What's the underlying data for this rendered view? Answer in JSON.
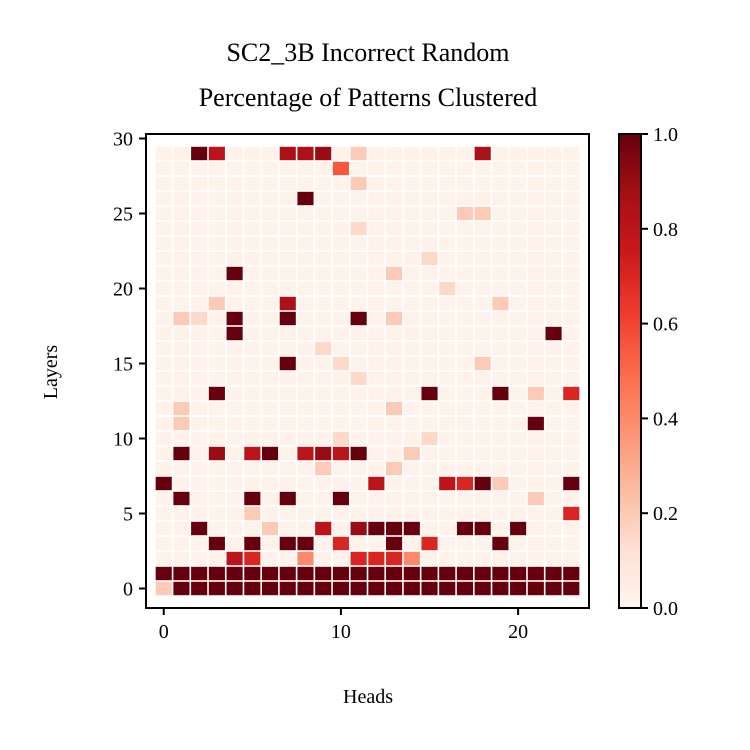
{
  "chart_data": {
    "type": "heatmap",
    "title_lines": [
      "SC2_3B Incorrect Random",
      "Percentage of Patterns Clustered"
    ],
    "xlabel": "Heads",
    "ylabel": "Layers",
    "n_cols": 24,
    "n_rows": 30,
    "xlim": [
      -1,
      24
    ],
    "ylim": [
      -1.3,
      30.3
    ],
    "x_ticks": [
      0,
      10,
      20
    ],
    "x_tick_labels": [
      "0",
      "10",
      "20"
    ],
    "y_ticks": [
      0,
      5,
      10,
      15,
      20,
      25,
      30
    ],
    "y_tick_labels": [
      "0",
      "5",
      "10",
      "15",
      "20",
      "25",
      "30"
    ],
    "colormap": "Reds",
    "colormap_stops": [
      "#fff5f0",
      "#fee0d2",
      "#fcbba1",
      "#fc9272",
      "#fb6a4a",
      "#ef3b2c",
      "#cb181d",
      "#a50f15",
      "#67000d"
    ],
    "colorbar_range": [
      0,
      1
    ],
    "colorbar_ticks": [
      0.0,
      0.2,
      0.4,
      0.6,
      0.8,
      1.0
    ],
    "colorbar_tick_labels": [
      "0.0",
      "0.2",
      "0.4",
      "0.6",
      "0.8",
      "1.0"
    ],
    "background_value": 0.02,
    "cells": [
      [
        0,
        0,
        0.2
      ],
      [
        1,
        0,
        1
      ],
      [
        2,
        0,
        1
      ],
      [
        3,
        0,
        1
      ],
      [
        4,
        0,
        1
      ],
      [
        5,
        0,
        1
      ],
      [
        6,
        0,
        1
      ],
      [
        7,
        0,
        1
      ],
      [
        8,
        0,
        1
      ],
      [
        9,
        0,
        1
      ],
      [
        10,
        0,
        1
      ],
      [
        11,
        0,
        1
      ],
      [
        12,
        0,
        1
      ],
      [
        13,
        0,
        1
      ],
      [
        14,
        0,
        1
      ],
      [
        15,
        0,
        1
      ],
      [
        16,
        0,
        1
      ],
      [
        17,
        0,
        1
      ],
      [
        18,
        0,
        1
      ],
      [
        19,
        0,
        1
      ],
      [
        20,
        0,
        1
      ],
      [
        21,
        0,
        1
      ],
      [
        22,
        0,
        1
      ],
      [
        23,
        0,
        1
      ],
      [
        0,
        1,
        1
      ],
      [
        1,
        1,
        1
      ],
      [
        2,
        1,
        1
      ],
      [
        3,
        1,
        1
      ],
      [
        4,
        1,
        1
      ],
      [
        5,
        1,
        1
      ],
      [
        6,
        1,
        1
      ],
      [
        7,
        1,
        1
      ],
      [
        8,
        1,
        1
      ],
      [
        9,
        1,
        1
      ],
      [
        10,
        1,
        1
      ],
      [
        11,
        1,
        1
      ],
      [
        12,
        1,
        1
      ],
      [
        13,
        1,
        1
      ],
      [
        14,
        1,
        1
      ],
      [
        15,
        1,
        1
      ],
      [
        16,
        1,
        1
      ],
      [
        17,
        1,
        1
      ],
      [
        18,
        1,
        1
      ],
      [
        19,
        1,
        1
      ],
      [
        20,
        1,
        1
      ],
      [
        21,
        1,
        1
      ],
      [
        22,
        1,
        1
      ],
      [
        23,
        1,
        1
      ],
      [
        4,
        2,
        0.8
      ],
      [
        5,
        2,
        0.7
      ],
      [
        8,
        2,
        0.4
      ],
      [
        11,
        2,
        0.7
      ],
      [
        12,
        2,
        0.7
      ],
      [
        13,
        2,
        0.7
      ],
      [
        14,
        2,
        0.4
      ],
      [
        3,
        3,
        1
      ],
      [
        5,
        3,
        1
      ],
      [
        7,
        3,
        1
      ],
      [
        8,
        3,
        1
      ],
      [
        10,
        3,
        0.7
      ],
      [
        13,
        3,
        1
      ],
      [
        15,
        3,
        0.7
      ],
      [
        19,
        3,
        1
      ],
      [
        2,
        4,
        1
      ],
      [
        6,
        4,
        0.2
      ],
      [
        9,
        4,
        0.8
      ],
      [
        11,
        4,
        0.9
      ],
      [
        12,
        4,
        1
      ],
      [
        13,
        4,
        1
      ],
      [
        14,
        4,
        1
      ],
      [
        17,
        4,
        1
      ],
      [
        18,
        4,
        1
      ],
      [
        20,
        4,
        1
      ],
      [
        5,
        5,
        0.2
      ],
      [
        23,
        5,
        0.7
      ],
      [
        1,
        6,
        1
      ],
      [
        5,
        6,
        1
      ],
      [
        7,
        6,
        1
      ],
      [
        10,
        6,
        1
      ],
      [
        21,
        6,
        0.2
      ],
      [
        0,
        7,
        1
      ],
      [
        12,
        7,
        0.8
      ],
      [
        16,
        7,
        0.8
      ],
      [
        17,
        7,
        0.7
      ],
      [
        18,
        7,
        1
      ],
      [
        19,
        7,
        0.2
      ],
      [
        23,
        7,
        1
      ],
      [
        9,
        8,
        0.2
      ],
      [
        13,
        8,
        0.2
      ],
      [
        1,
        9,
        1
      ],
      [
        3,
        9,
        0.9
      ],
      [
        5,
        9,
        0.8
      ],
      [
        6,
        9,
        1
      ],
      [
        8,
        9,
        0.8
      ],
      [
        9,
        9,
        0.9
      ],
      [
        10,
        9,
        0.8
      ],
      [
        11,
        9,
        1
      ],
      [
        14,
        9,
        0.2
      ],
      [
        10,
        10,
        0.15
      ],
      [
        15,
        10,
        0.15
      ],
      [
        1,
        11,
        0.2
      ],
      [
        21,
        11,
        1
      ],
      [
        1,
        12,
        0.2
      ],
      [
        13,
        12,
        0.2
      ],
      [
        3,
        13,
        1
      ],
      [
        15,
        13,
        1
      ],
      [
        19,
        13,
        1
      ],
      [
        21,
        13,
        0.2
      ],
      [
        23,
        13,
        0.7
      ],
      [
        11,
        14,
        0.15
      ],
      [
        7,
        15,
        1
      ],
      [
        10,
        15,
        0.15
      ],
      [
        18,
        15,
        0.2
      ],
      [
        9,
        16,
        0.15
      ],
      [
        4,
        17,
        1
      ],
      [
        22,
        17,
        1
      ],
      [
        1,
        18,
        0.2
      ],
      [
        2,
        18,
        0.15
      ],
      [
        4,
        18,
        1
      ],
      [
        7,
        18,
        1
      ],
      [
        11,
        18,
        1
      ],
      [
        13,
        18,
        0.2
      ],
      [
        3,
        19,
        0.2
      ],
      [
        7,
        19,
        0.85
      ],
      [
        19,
        19,
        0.2
      ],
      [
        16,
        20,
        0.15
      ],
      [
        4,
        21,
        1
      ],
      [
        13,
        21,
        0.2
      ],
      [
        15,
        22,
        0.15
      ],
      [
        11,
        24,
        0.15
      ],
      [
        17,
        25,
        0.2
      ],
      [
        18,
        25,
        0.2
      ],
      [
        8,
        26,
        1
      ],
      [
        11,
        27,
        0.2
      ],
      [
        10,
        28,
        0.55
      ],
      [
        2,
        29,
        1
      ],
      [
        3,
        29,
        0.8
      ],
      [
        7,
        29,
        0.85
      ],
      [
        8,
        29,
        0.85
      ],
      [
        9,
        29,
        0.9
      ],
      [
        11,
        29,
        0.2
      ],
      [
        18,
        29,
        0.85
      ]
    ]
  }
}
